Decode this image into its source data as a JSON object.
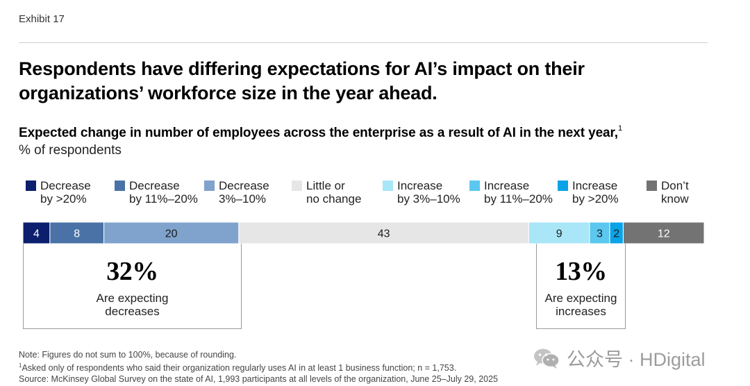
{
  "exhibit": "Exhibit 17",
  "title": "Respondents have differing expectations for AI’s impact on their organizations’ workforce size in the year ahead.",
  "subtitle": "Expected change in number of employees across the enterprise as a result of AI in the next year,",
  "subtitle_footnote_marker": "1",
  "unit_label": "% of respondents",
  "chart_data": {
    "type": "bar",
    "orientation": "horizontal-stacked-100",
    "categories": [
      "Decrease by >20%",
      "Decrease by 11%–20%",
      "Decrease 3%–10%",
      "Little or no change",
      "Increase by 3%–10%",
      "Increase by 11%–20%",
      "Increase by >20%",
      "Don't know"
    ],
    "series": [
      {
        "name": "Decrease by >20%",
        "value": 4,
        "color": "#0b1f6e",
        "label_color": "#ffffff"
      },
      {
        "name": "Decrease by 11%–20%",
        "value": 8,
        "color": "#4a72a6",
        "label_color": "#ffffff"
      },
      {
        "name": "Decrease 3%–10%",
        "value": 20,
        "color": "#7fa3cc",
        "label_color": "#1a1a1a"
      },
      {
        "name": "Little or no change",
        "value": 43,
        "color": "#e6e6e6",
        "label_color": "#1a1a1a"
      },
      {
        "name": "Increase by 3%–10%",
        "value": 9,
        "color": "#a8e6f8",
        "label_color": "#1a1a1a"
      },
      {
        "name": "Increase by 11%–20%",
        "value": 3,
        "color": "#5cc8ef",
        "label_color": "#1a1a1a"
      },
      {
        "name": "Increase by >20%",
        "value": 2,
        "color": "#0aa3e8",
        "label_color": "#1a1a1a"
      },
      {
        "name": "Don't know",
        "value": 12,
        "color": "#737373",
        "label_color": "#ffffff"
      }
    ],
    "unit": "% of respondents",
    "legend": [
      {
        "label": "Decrease\nby >20%",
        "color": "#0b1f6e"
      },
      {
        "label": "Decrease\nby 11%–20%",
        "color": "#4a72a6"
      },
      {
        "label": "Decrease\n3%–10%",
        "color": "#7fa3cc"
      },
      {
        "label": "Little or\nno change",
        "color": "#e6e6e6"
      },
      {
        "label": "Increase\nby 3%–10%",
        "color": "#a8e6f8"
      },
      {
        "label": "Increase\nby 11%–20%",
        "color": "#5cc8ef"
      },
      {
        "label": "Increase\nby >20%",
        "color": "#0aa3e8"
      },
      {
        "label": "Don’t\nknow",
        "color": "#737373"
      }
    ],
    "annotations": [
      {
        "value": "32%",
        "text": "Are expecting\ndecreases",
        "covers": "Decrease segments"
      },
      {
        "value": "13%",
        "text": "Are expecting\nincreases",
        "covers": "Increase segments"
      }
    ]
  },
  "footnotes": {
    "note": "Note: Figures do not sum to 100%, because of rounding.",
    "footnote_marker": "1",
    "footnote1": "Asked only of respondents who said their organization regularly uses AI in at least 1 business function; n = 1,753.",
    "source": "Source: McKinsey Global Survey on the state of AI, 1,993 participants at all levels of the organization, June 25–July 29, 2025"
  },
  "watermark": "公众号 · HDigital"
}
